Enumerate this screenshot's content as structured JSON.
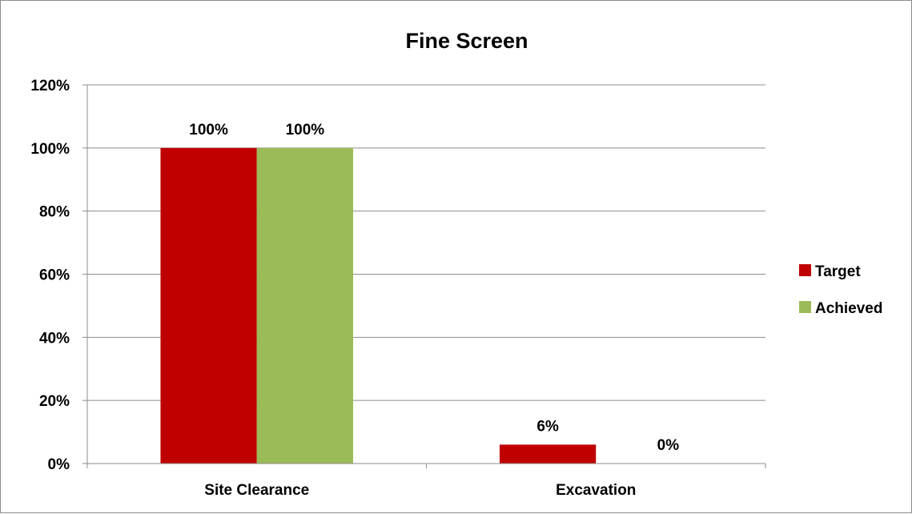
{
  "chart_data": {
    "type": "bar",
    "title": "Fine Screen",
    "xlabel": "",
    "ylabel": "",
    "categories": [
      "Site Clearance",
      "Excavation"
    ],
    "series": [
      {
        "name": "Target",
        "values": [
          1.0,
          0.06
        ],
        "labels": [
          "100%",
          "6%"
        ],
        "color": "#c00000"
      },
      {
        "name": "Achieved",
        "values": [
          1.0,
          0.0
        ],
        "labels": [
          "100%",
          "0%"
        ],
        "color": "#9bbb59"
      }
    ],
    "ylim": [
      0,
      1.2
    ],
    "yticks": [
      0,
      0.2,
      0.4,
      0.6,
      0.8,
      1.0,
      1.2
    ],
    "ytick_labels": [
      "0%",
      "20%",
      "40%",
      "60%",
      "80%",
      "100%",
      "120%"
    ],
    "grid": true,
    "legend": "right"
  }
}
